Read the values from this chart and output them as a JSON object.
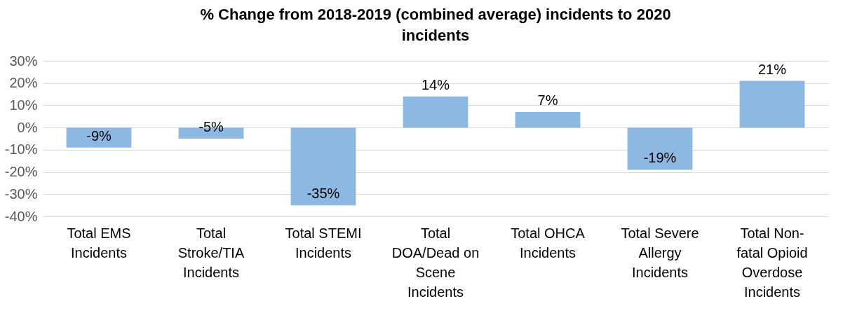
{
  "chart_data": {
    "type": "bar",
    "title": "% Change from 2018-2019 (combined average) incidents to 2020 incidents",
    "categories": [
      "Total EMS Incidents",
      "Total Stroke/TIA Incidents",
      "Total STEMI Incidents",
      "Total DOA/Dead on Scene Incidents",
      "Total OHCA Incidents",
      "Total Severe Allergy Incidents",
      "Total Non-fatal Opioid Overdose Incidents"
    ],
    "values": [
      -9,
      -5,
      -35,
      14,
      7,
      -19,
      21
    ],
    "value_labels": [
      "-9%",
      "-5%",
      "-35%",
      "14%",
      "7%",
      "-19%",
      "21%"
    ],
    "color": "#8db8e2",
    "ylim": [
      -40,
      30
    ],
    "yticks": [
      {
        "value": -40,
        "label": "-40%"
      },
      {
        "value": -30,
        "label": "-30%"
      },
      {
        "value": -20,
        "label": "-20%"
      },
      {
        "value": -10,
        "label": "-10%"
      },
      {
        "value": 0,
        "label": "0%"
      },
      {
        "value": 10,
        "label": "10%"
      },
      {
        "value": 20,
        "label": "20%"
      },
      {
        "value": 30,
        "label": "30%"
      }
    ],
    "grid": true
  }
}
